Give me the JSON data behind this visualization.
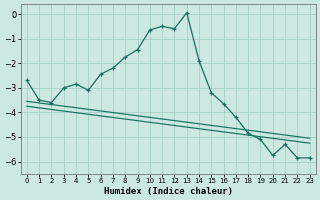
{
  "xlabel": "Humidex (Indice chaleur)",
  "background_color": "#cce8e2",
  "grid_color": "#a8d0ca",
  "line_color": "#1a6e62",
  "xlim": [
    -0.5,
    23.5
  ],
  "ylim": [
    -6.5,
    0.4
  ],
  "xticks": [
    0,
    1,
    2,
    3,
    4,
    5,
    6,
    7,
    8,
    9,
    10,
    11,
    12,
    13,
    14,
    15,
    16,
    17,
    18,
    19,
    20,
    21,
    22,
    23
  ],
  "yticks": [
    0,
    -1,
    -2,
    -3,
    -4,
    -5,
    -6
  ],
  "series_main": [
    [
      0,
      -2.7
    ],
    [
      1,
      -3.5
    ],
    [
      2,
      -3.6
    ],
    [
      3,
      -3.0
    ],
    [
      4,
      -2.85
    ],
    [
      5,
      -3.1
    ],
    [
      6,
      -2.45
    ],
    [
      7,
      -2.2
    ],
    [
      8,
      -1.75
    ],
    [
      9,
      -1.45
    ],
    [
      10,
      -0.65
    ],
    [
      11,
      -0.5
    ],
    [
      12,
      -0.6
    ],
    [
      13,
      0.05
    ],
    [
      14,
      -1.9
    ],
    [
      15,
      -3.2
    ],
    [
      16,
      -3.65
    ],
    [
      17,
      -4.2
    ],
    [
      18,
      -4.85
    ],
    [
      19,
      -5.1
    ],
    [
      20,
      -5.75
    ],
    [
      21,
      -5.3
    ],
    [
      22,
      -5.85
    ],
    [
      23,
      -5.85
    ]
  ],
  "series_line1": [
    [
      0,
      -3.55
    ],
    [
      23,
      -5.05
    ]
  ],
  "series_line2": [
    [
      0,
      -3.75
    ],
    [
      23,
      -5.25
    ]
  ]
}
